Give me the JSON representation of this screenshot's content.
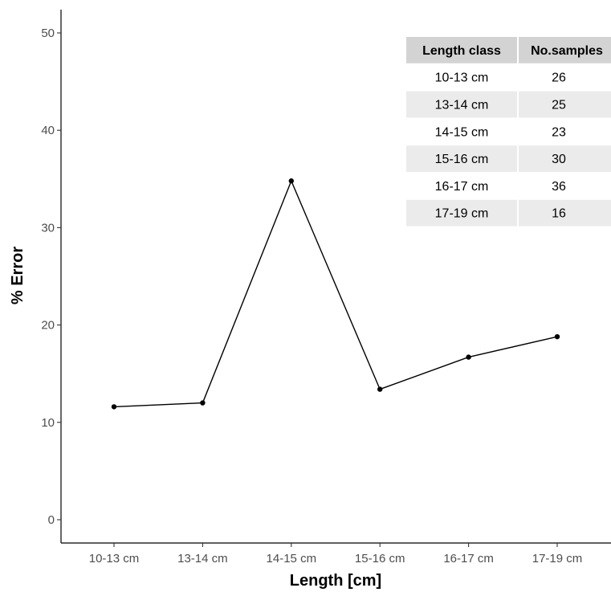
{
  "chart_data": {
    "type": "line",
    "categories": [
      "10-13 cm",
      "13-14 cm",
      "14-15 cm",
      "15-16 cm",
      "16-17 cm",
      "17-19 cm"
    ],
    "values": [
      11.6,
      12.0,
      34.8,
      13.4,
      16.7,
      18.8
    ],
    "xlabel": "Length [cm]",
    "ylabel": "% Error",
    "ylim": [
      0,
      50
    ],
    "yticks": [
      0,
      10,
      20,
      30,
      40,
      50
    ],
    "grid": false,
    "line_color": "#000000",
    "inset_table": {
      "columns": [
        "Length class",
        "No.samples"
      ],
      "rows": [
        [
          "10-13 cm",
          "26"
        ],
        [
          "13-14 cm",
          "25"
        ],
        [
          "14-15 cm",
          "23"
        ],
        [
          "15-16 cm",
          "30"
        ],
        [
          "16-17 cm",
          "36"
        ],
        [
          "17-19 cm",
          "16"
        ]
      ],
      "header_color": "#d3d3d3",
      "stripe_color": "#ebebeb"
    }
  }
}
